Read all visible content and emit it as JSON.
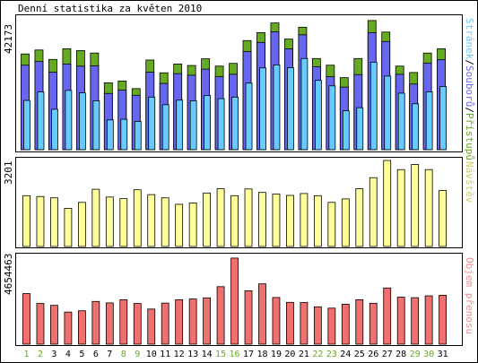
{
  "title": "Denní statistika za květen 2010",
  "colors": {
    "pages": "#66ccff",
    "files": "#6666ee",
    "hits": "#66aa22",
    "visits": "#ffff99",
    "traffic": "#f07070",
    "weekend_label": "#66aa22",
    "weekday_label": "#000000"
  },
  "chart_data": [
    {
      "type": "bar",
      "name": "hits-files-pages",
      "y_max_label": "42173",
      "ylim": [
        0,
        42173
      ],
      "categories": [
        "1",
        "2",
        "3",
        "4",
        "5",
        "6",
        "7",
        "8",
        "9",
        "10",
        "11",
        "12",
        "13",
        "14",
        "15",
        "16",
        "17",
        "18",
        "19",
        "20",
        "21",
        "22",
        "23",
        "24",
        "25",
        "26",
        "27",
        "28",
        "29",
        "30",
        "31"
      ],
      "weekend_days": [
        "1",
        "2",
        "8",
        "9",
        "15",
        "16",
        "22",
        "23",
        "29",
        "30"
      ],
      "right_label": {
        "pages": "Stránek",
        "sep1": "/",
        "files": "Souborů",
        "sep2": "/",
        "hits": "Přístupů"
      },
      "series": [
        {
          "name": "Přístupů",
          "values": [
            31500,
            32800,
            29700,
            33200,
            32600,
            31800,
            22000,
            22600,
            20100,
            29500,
            25300,
            28200,
            27700,
            29900,
            27500,
            28400,
            35900,
            38500,
            41700,
            36400,
            40300,
            30000,
            27800,
            23700,
            30000,
            42500,
            38700,
            27500,
            25400,
            31800,
            33200
          ]
        },
        {
          "name": "Souborů",
          "values": [
            27800,
            29000,
            25500,
            28200,
            27500,
            27600,
            18500,
            19600,
            17900,
            25500,
            21800,
            25000,
            24500,
            26500,
            24000,
            24800,
            32300,
            35300,
            38800,
            33200,
            37800,
            27300,
            24000,
            20600,
            24700,
            38500,
            35600,
            24800,
            21600,
            28500,
            29600
          ]
        },
        {
          "name": "Stránek",
          "values": [
            16200,
            19000,
            13300,
            19500,
            18700,
            16100,
            9800,
            10000,
            9300,
            17300,
            14800,
            16300,
            16100,
            17800,
            16800,
            17300,
            21900,
            26900,
            27900,
            27000,
            30000,
            22800,
            21000,
            12800,
            13800,
            28800,
            24200,
            18600,
            15100,
            19000,
            20800
          ]
        }
      ]
    },
    {
      "type": "bar",
      "name": "visits",
      "y_max_label": "3201",
      "ylim": [
        0,
        3201
      ],
      "categories": [
        "1",
        "2",
        "3",
        "4",
        "5",
        "6",
        "7",
        "8",
        "9",
        "10",
        "11",
        "12",
        "13",
        "14",
        "15",
        "16",
        "17",
        "18",
        "19",
        "20",
        "21",
        "22",
        "23",
        "24",
        "25",
        "26",
        "27",
        "28",
        "29",
        "30",
        "31"
      ],
      "right_label": "Návštěv",
      "series": [
        {
          "name": "Návštěv",
          "values": [
            1890,
            1860,
            1810,
            1420,
            1640,
            2130,
            1840,
            1780,
            2110,
            1930,
            1810,
            1570,
            1620,
            1990,
            2150,
            1890,
            2140,
            2010,
            1950,
            1900,
            1970,
            1890,
            1640,
            1770,
            2150,
            2560,
            3200,
            2860,
            3050,
            2860,
            2080
          ]
        }
      ]
    },
    {
      "type": "bar",
      "name": "traffic",
      "y_max_label": "4654463",
      "ylim": [
        0,
        4654463
      ],
      "categories": [
        "1",
        "2",
        "3",
        "4",
        "5",
        "6",
        "7",
        "8",
        "9",
        "10",
        "11",
        "12",
        "13",
        "14",
        "15",
        "16",
        "17",
        "18",
        "19",
        "20",
        "21",
        "22",
        "23",
        "24",
        "25",
        "26",
        "27",
        "28",
        "29",
        "30",
        "31"
      ],
      "right_label": "Objem přenosu",
      "series": [
        {
          "name": "Objem přenosu",
          "values": [
            2710000,
            2180000,
            2080000,
            1720000,
            1790000,
            2290000,
            2210000,
            2380000,
            2180000,
            1880000,
            2200000,
            2380000,
            2420000,
            2480000,
            3080000,
            4610000,
            2860000,
            3230000,
            2500000,
            2240000,
            2230000,
            2000000,
            1930000,
            2140000,
            2380000,
            2190000,
            3010000,
            2520000,
            2490000,
            2590000,
            2620000
          ]
        }
      ]
    }
  ]
}
